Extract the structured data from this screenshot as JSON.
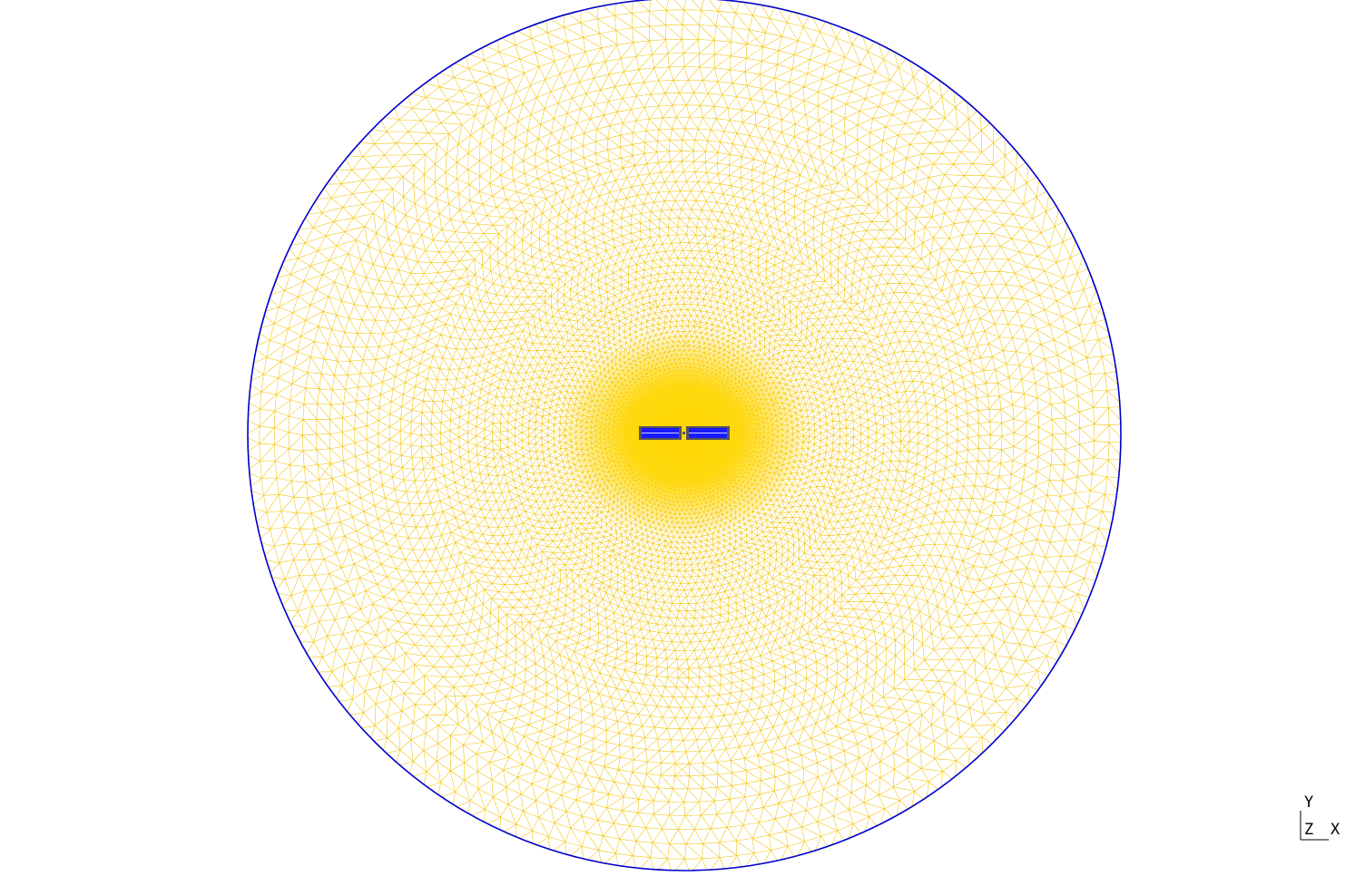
{
  "viewport": {
    "background": "#ffffff",
    "mesh": {
      "element_type": "triangle",
      "mesh_line_color": "#f2c200",
      "dense_fill_color": "#ffd700",
      "boundary_color": "#0000cc",
      "refined_region": "center"
    },
    "conductors": {
      "count": 2,
      "fill_color": "#1a1aff",
      "outline_color": "#555555",
      "center_stripe_color": "#ccccff"
    }
  },
  "triad": {
    "y_label": "Y",
    "z_label": "Z",
    "x_label": "X"
  }
}
